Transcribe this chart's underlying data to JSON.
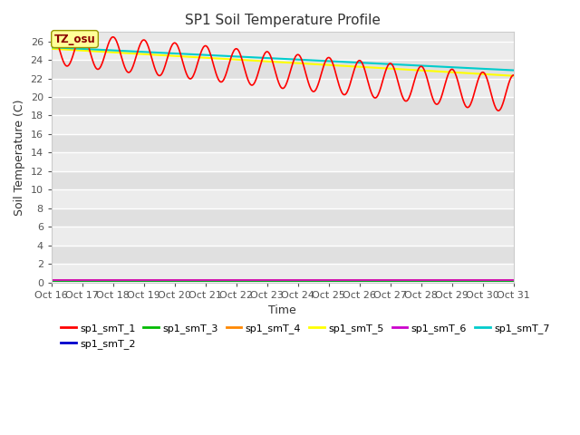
{
  "title": "SP1 Soil Temperature Profile",
  "xlabel": "Time",
  "ylabel": "Soil Temperature (C)",
  "ylim": [
    0,
    27
  ],
  "xlim": [
    0,
    360
  ],
  "bg_color_light": "#e8e8e8",
  "bg_color_dark": "#d8d8d8",
  "annotation_text": "TZ_osu",
  "annotation_color": "#8B0000",
  "annotation_bg": "#ffff99",
  "tick_labels": [
    "Oct 16",
    "Oct 17",
    "Oct 18",
    "Oct 19",
    "Oct 20",
    "Oct 21",
    "Oct 22",
    "Oct 23",
    "Oct 24",
    "Oct 25",
    "Oct 26",
    "Oct 27",
    "Oct 28",
    "Oct 29",
    "Oct 30",
    "Oct 31"
  ],
  "yticks": [
    0,
    2,
    4,
    6,
    8,
    10,
    12,
    14,
    16,
    18,
    20,
    22,
    24,
    26
  ],
  "series": {
    "sp1_smT_1": {
      "color": "#ff0000",
      "lw": 1.2
    },
    "sp1_smT_2": {
      "color": "#0000cc",
      "lw": 1.2
    },
    "sp1_smT_3": {
      "color": "#00bb00",
      "lw": 1.2
    },
    "sp1_smT_4": {
      "color": "#ff8800",
      "lw": 1.2
    },
    "sp1_smT_5": {
      "color": "#ffff00",
      "lw": 1.5
    },
    "sp1_smT_6": {
      "color": "#cc00cc",
      "lw": 1.2
    },
    "sp1_smT_7": {
      "color": "#00cccc",
      "lw": 1.5
    }
  },
  "legend_row1": [
    "sp1_smT_1",
    "sp1_smT_2",
    "sp1_smT_3",
    "sp1_smT_4",
    "sp1_smT_5",
    "sp1_smT_6"
  ],
  "legend_row2": [
    "sp1_smT_7"
  ]
}
